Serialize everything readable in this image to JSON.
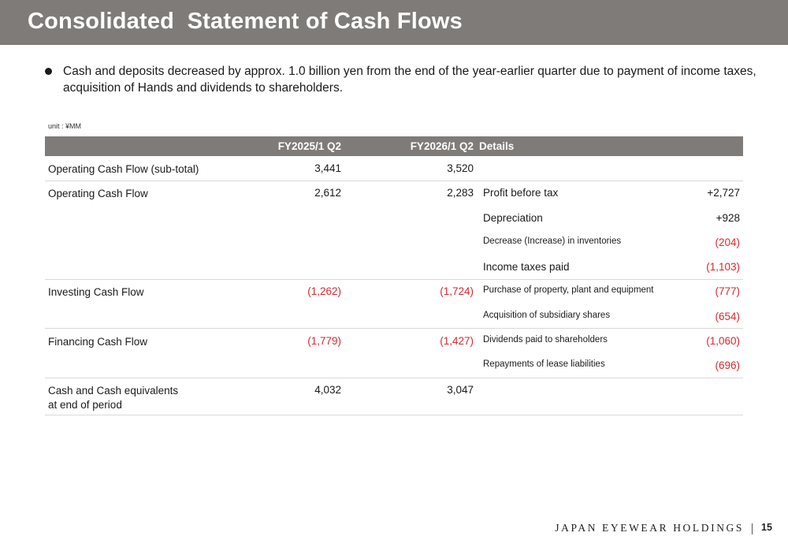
{
  "header": {
    "title": "Consolidated  Statement of Cash Flows"
  },
  "summary": "Cash and deposits decreased by approx. 1.0 billion yen from the end of the year-earlier quarter due to payment of income taxes, acquisition of Hands and dividends to shareholders.",
  "unit": "unit : ¥MM",
  "table": {
    "columns": [
      "FY2025/1 Q2",
      "FY2026/1 Q2",
      "Details"
    ],
    "rows": [
      {
        "label": "Operating Cash Flow (sub-total)",
        "fy2025": "3,441",
        "fy2026": "3,520"
      },
      {
        "label": "Operating Cash Flow",
        "fy2025": "2,612",
        "fy2026": "2,283",
        "details": [
          {
            "label": "Profit before tax",
            "value": "+2,727"
          },
          {
            "label": "Depreciation",
            "value": "+928"
          },
          {
            "label": "Decrease (Increase) in inventories",
            "value": "(204)"
          },
          {
            "label": "Income taxes paid",
            "value": "(1,103)"
          }
        ]
      },
      {
        "label": "Investing Cash Flow",
        "fy2025": "(1,262)",
        "fy2026": "(1,724)",
        "details": [
          {
            "label": "Purchase of property, plant and equipment",
            "value": "(777)"
          },
          {
            "label": "Acquisition of subsidiary shares",
            "value": "(654)"
          }
        ]
      },
      {
        "label": "Financing Cash Flow",
        "fy2025": "(1,779)",
        "fy2026": "(1,427)",
        "details": [
          {
            "label": "Dividends paid to shareholders",
            "value": "(1,060)"
          },
          {
            "label": "Repayments of lease liabilities",
            "value": "(696)"
          }
        ]
      },
      {
        "label_line1": "Cash and Cash equivalents",
        "label_line2": "at end of period",
        "fy2025": "4,032",
        "fy2026": "3,047"
      }
    ]
  },
  "footer": {
    "brand": "JAPAN EYEWEAR HOLDINGS",
    "page": "15"
  },
  "colors": {
    "header_bg": "#7f7b78",
    "negative": "#e0262c",
    "divider": "#d9d9d9"
  }
}
